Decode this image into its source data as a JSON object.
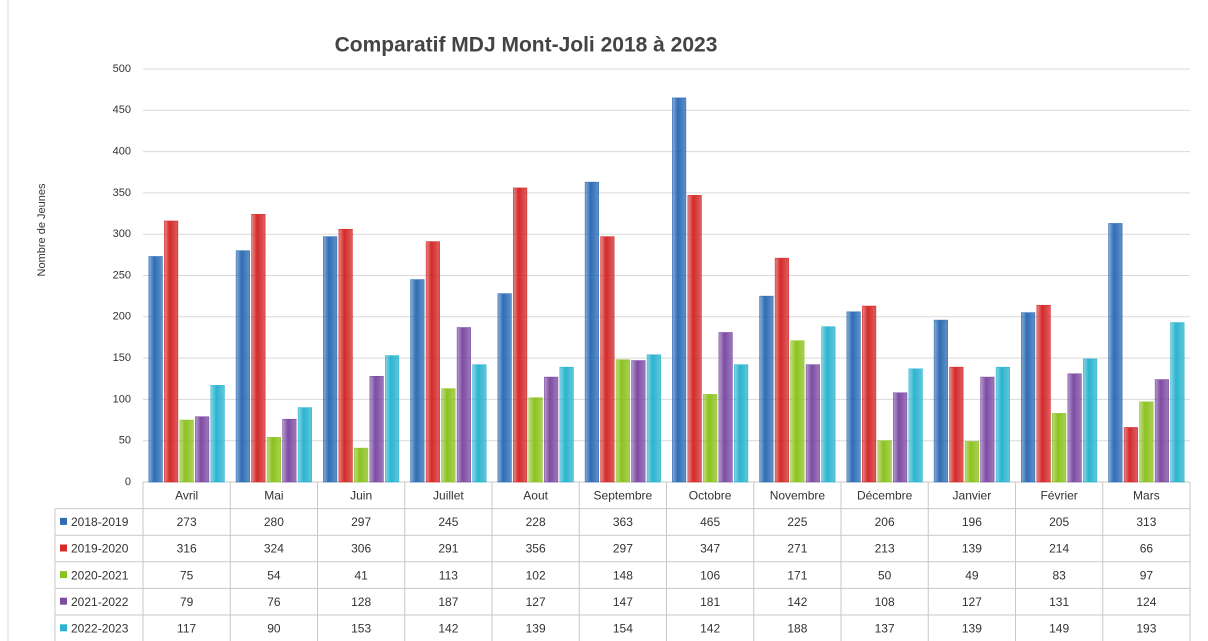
{
  "chart_data": {
    "type": "bar",
    "title": "Comparatif MDJ Mont-Joli 2018 à 2023",
    "ylabel": "Nombre de Jeunes",
    "categories": [
      "Avril",
      "Mai",
      "Juin",
      "Juillet",
      "Aout",
      "Septembre",
      "Octobre",
      "Novembre",
      "Décembre",
      "Janvier",
      "Février",
      "Mars"
    ],
    "series": [
      {
        "name": "2018-2019",
        "color": "#2e6db5",
        "values": [
          273,
          280,
          297,
          245,
          228,
          363,
          465,
          225,
          206,
          196,
          205,
          313
        ]
      },
      {
        "name": "2019-2020",
        "color": "#d42a2a",
        "values": [
          316,
          324,
          306,
          291,
          356,
          297,
          347,
          271,
          213,
          139,
          214,
          66
        ]
      },
      {
        "name": "2020-2021",
        "color": "#8cc21f",
        "values": [
          75,
          54,
          41,
          113,
          102,
          148,
          106,
          171,
          50,
          49,
          83,
          97
        ]
      },
      {
        "name": "2021-2022",
        "color": "#7d4ca3",
        "values": [
          79,
          76,
          128,
          187,
          127,
          147,
          181,
          142,
          108,
          127,
          131,
          124
        ]
      },
      {
        "name": "2022-2023",
        "color": "#2bb4cf",
        "values": [
          117,
          90,
          153,
          142,
          139,
          154,
          142,
          188,
          137,
          139,
          149,
          193
        ]
      }
    ],
    "ylim": [
      0,
      500
    ],
    "yticks": [
      0,
      50,
      100,
      150,
      200,
      250,
      300,
      350,
      400,
      450,
      500
    ],
    "grid": true,
    "legend": "table"
  }
}
